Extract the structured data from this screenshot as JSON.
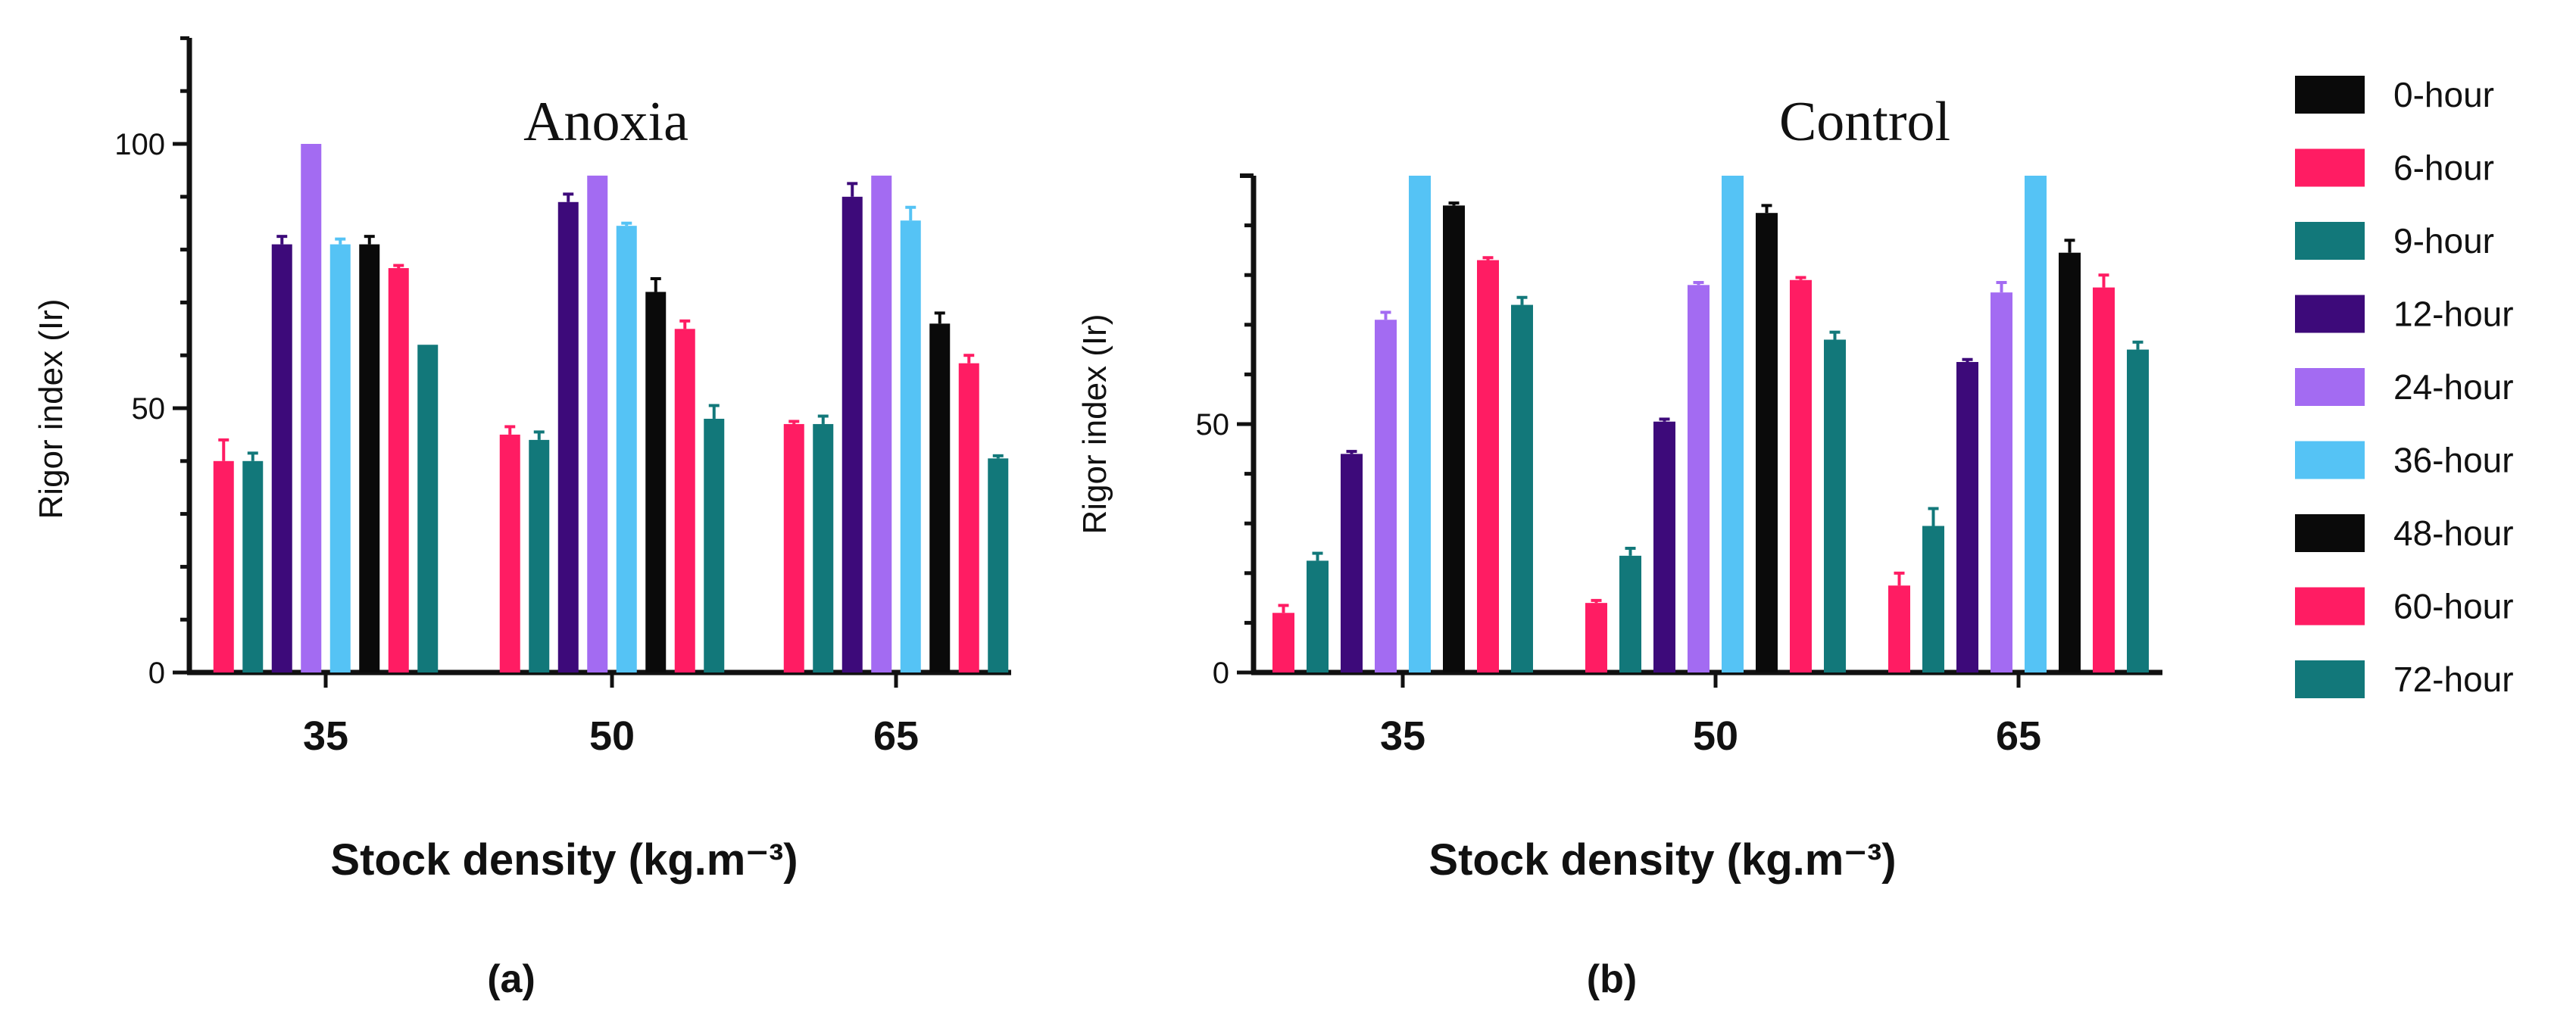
{
  "colors": {
    "0-hour": "#0a0a0a",
    "6-hour": "#ff1c63",
    "9-hour": "#12787a",
    "12-hour": "#3d0a7a",
    "24-hour": "#a36bf2",
    "36-hour": "#55c3f5",
    "48-hour": "#0a0a0a",
    "60-hour": "#ff1c63",
    "72-hour": "#12787a"
  },
  "legend": {
    "entries": [
      "0-hour",
      "6-hour",
      "9-hour",
      "12-hour",
      "24-hour",
      "36-hour",
      "48-hour",
      "60-hour",
      "72-hour"
    ]
  },
  "chart_data": [
    {
      "type": "bar",
      "title": "Anoxia",
      "panel_label": "(a)",
      "xlabel": "Stock density (kg.m⁻³)",
      "ylabel": "Rigor index (Ir)",
      "ylim": [
        0,
        120
      ],
      "yticks": [
        0,
        50,
        100
      ],
      "categories": [
        "35",
        "50",
        "65"
      ],
      "bars_per_group": [
        "6-hour",
        "9-hour",
        "12-hour",
        "24-hour",
        "36-hour",
        "48-hour",
        "60-hour",
        "72-hour"
      ],
      "series": [
        {
          "name": "6-hour",
          "values": [
            40,
            45,
            47
          ],
          "errors": [
            4,
            1.5,
            0.5
          ]
        },
        {
          "name": "9-hour",
          "values": [
            40,
            44,
            47
          ],
          "errors": [
            1.5,
            1.5,
            1.5
          ]
        },
        {
          "name": "12-hour",
          "values": [
            81,
            89,
            90
          ],
          "errors": [
            1.5,
            1.5,
            2.5
          ]
        },
        {
          "name": "24-hour",
          "values": [
            100,
            94,
            94
          ],
          "errors": [
            0,
            0,
            0
          ]
        },
        {
          "name": "36-hour",
          "values": [
            81,
            84.5,
            85.5
          ],
          "errors": [
            1,
            0.5,
            2.5
          ]
        },
        {
          "name": "48-hour",
          "values": [
            81,
            72,
            66
          ],
          "errors": [
            1.5,
            2.5,
            2
          ]
        },
        {
          "name": "60-hour",
          "values": [
            76.5,
            65,
            58.5
          ],
          "errors": [
            0.5,
            1.5,
            1.5
          ]
        },
        {
          "name": "72-hour",
          "values": [
            62,
            48,
            40.5
          ],
          "errors": [
            0,
            2.5,
            0.5
          ]
        }
      ]
    },
    {
      "type": "bar",
      "title": "Control",
      "panel_label": "(b)",
      "xlabel": "Stock density (kg.m⁻³)",
      "ylabel": "Rigor index (Ir)",
      "ylim": [
        0,
        100
      ],
      "yticks": [
        0,
        50
      ],
      "categories": [
        "35",
        "50",
        "65"
      ],
      "bars_per_group": [
        "6-hour",
        "9-hour",
        "12-hour",
        "24-hour",
        "36-hour",
        "48-hour",
        "60-hour",
        "72-hour"
      ],
      "series": [
        {
          "name": "6-hour",
          "values": [
            12,
            14,
            17.5
          ],
          "errors": [
            1.5,
            0.5,
            2.5
          ]
        },
        {
          "name": "9-hour",
          "values": [
            22.5,
            23.5,
            29.5
          ],
          "errors": [
            1.5,
            1.5,
            3.5
          ]
        },
        {
          "name": "12-hour",
          "values": [
            44,
            50.5,
            62.5
          ],
          "errors": [
            0.5,
            0.5,
            0.5
          ]
        },
        {
          "name": "24-hour",
          "values": [
            71,
            78,
            76.5
          ],
          "errors": [
            1.5,
            0.5,
            2
          ]
        },
        {
          "name": "36-hour",
          "values": [
            100,
            100,
            100
          ],
          "errors": [
            0,
            0,
            0
          ]
        },
        {
          "name": "48-hour",
          "values": [
            94,
            92.5,
            84.5
          ],
          "errors": [
            0.5,
            1.5,
            2.5
          ]
        },
        {
          "name": "60-hour",
          "values": [
            83,
            79,
            77.5
          ],
          "errors": [
            0.5,
            0.5,
            2.5
          ]
        },
        {
          "name": "72-hour",
          "values": [
            74,
            67,
            65
          ],
          "errors": [
            1.5,
            1.5,
            1.5
          ]
        }
      ]
    }
  ]
}
